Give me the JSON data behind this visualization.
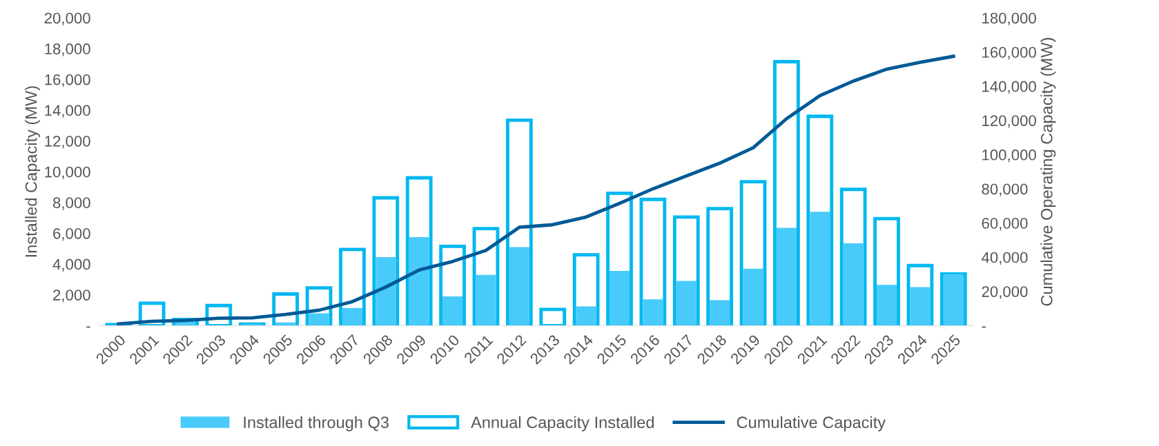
{
  "chart_data": {
    "type": "bar",
    "ylabel": "Installed Capacity (MW)",
    "y2label": "Cumulative Operating Capacity (MW)",
    "categories": [
      "2000",
      "2001",
      "2002",
      "2003",
      "2004",
      "2005",
      "2006",
      "2007",
      "2008",
      "2009",
      "2010",
      "2011",
      "2012",
      "2013",
      "2014",
      "2015",
      "2016",
      "2017",
      "2018",
      "2019",
      "2020",
      "2021",
      "2022",
      "2023",
      "2024",
      "2025"
    ],
    "series": [
      {
        "name": "Installed through Q3",
        "color": "#48cbfa",
        "values": [
          null,
          null,
          300,
          null,
          100,
          200,
          800,
          1150,
          4450,
          5750,
          1900,
          3300,
          5100,
          0,
          1250,
          3550,
          1700,
          2900,
          1650,
          3700,
          6350,
          7400,
          5350,
          2650,
          2500,
          3350
        ]
      },
      {
        "name": "Annual Capacity Installed",
        "color": "#00b8f0",
        "values": [
          60,
          1450,
          400,
          1300,
          100,
          2050,
          2450,
          4950,
          8300,
          9600,
          5150,
          6300,
          13350,
          1050,
          4600,
          8600,
          8200,
          7050,
          7600,
          9350,
          17150,
          13600,
          8850,
          6950,
          3900,
          3350
        ]
      },
      {
        "name": "Cumulative Capacity",
        "type": "line",
        "axis": "y2",
        "color": "#005a96",
        "values": [
          1000,
          2500,
          3000,
          4300,
          4500,
          6500,
          9000,
          14000,
          22500,
          32500,
          37500,
          44000,
          57500,
          59000,
          63500,
          71500,
          80000,
          87500,
          95000,
          104000,
          121000,
          134500,
          143000,
          150000,
          154000,
          157500
        ]
      }
    ],
    "ylim": [
      0,
      20000
    ],
    "yticks": [
      {
        "value": 0,
        "label": "-"
      },
      {
        "value": 2000,
        "label": "2,000"
      },
      {
        "value": 4000,
        "label": "4,000"
      },
      {
        "value": 6000,
        "label": "6,000"
      },
      {
        "value": 8000,
        "label": "8,000"
      },
      {
        "value": 10000,
        "label": "10,000"
      },
      {
        "value": 12000,
        "label": "12,000"
      },
      {
        "value": 14000,
        "label": "14,000"
      },
      {
        "value": 16000,
        "label": "16,000"
      },
      {
        "value": 18000,
        "label": "18,000"
      },
      {
        "value": 20000,
        "label": "20,000"
      }
    ],
    "y2lim": [
      0,
      180000
    ],
    "y2ticks": [
      {
        "value": 0,
        "label": "-"
      },
      {
        "value": 20000,
        "label": "20,000"
      },
      {
        "value": 40000,
        "label": "40,000"
      },
      {
        "value": 60000,
        "label": "60,000"
      },
      {
        "value": 80000,
        "label": "80,000"
      },
      {
        "value": 100000,
        "label": "100,000"
      },
      {
        "value": 120000,
        "label": "120,000"
      },
      {
        "value": 140000,
        "label": "140,000"
      },
      {
        "value": 160000,
        "label": "160,000"
      },
      {
        "value": 180000,
        "label": "180,000"
      }
    ],
    "grid": false,
    "legend": "bottom",
    "marker": "none",
    "line_style": "solid"
  }
}
